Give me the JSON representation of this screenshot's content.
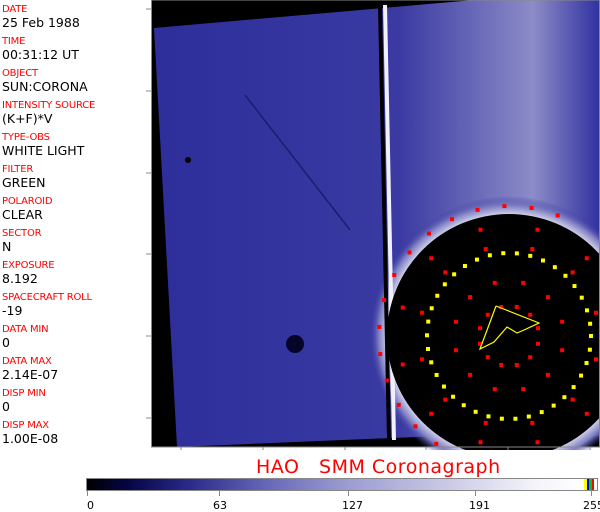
{
  "header_fields": [
    {
      "label": "DATE",
      "value": "25 Feb 1988"
    },
    {
      "label": "TIME",
      "value": "00:31:12 UT"
    },
    {
      "label": "OBJECT",
      "value": "SUN:CORONA"
    },
    {
      "label": "INTENSITY SOURCE",
      "value": "(K+F)*V"
    },
    {
      "label": "TYPE-OBS",
      "value": "WHITE LIGHT"
    },
    {
      "label": "FILTER",
      "value": "GREEN"
    },
    {
      "label": "POLAROID",
      "value": "CLEAR"
    },
    {
      "label": "SECTOR",
      "value": "N"
    },
    {
      "label": "EXPOSURE",
      "value": "8.192"
    },
    {
      "label": "SPACECRAFT ROLL",
      "value": "-19"
    },
    {
      "label": "DATA MIN",
      "value": "0"
    },
    {
      "label": "DATA MAX",
      "value": "2.14E-07"
    },
    {
      "label": "DISP MIN",
      "value": "0"
    },
    {
      "label": "DISP MAX",
      "value": "1.00E-08"
    }
  ],
  "title": "HAO   SMM Coronagraph",
  "colorbar": {
    "ticks": [
      "0",
      "63",
      "127",
      "191",
      "255"
    ],
    "min_color": "#000000",
    "max_color": "#ffffff",
    "overflow_colors": [
      "#ffff00",
      "#0000ff",
      "#00c000",
      "#ff0000"
    ]
  },
  "colors": {
    "label": "#ff0000",
    "image_blue": "#2e2e9c",
    "marker_red": "#ff0000",
    "marker_yellow": "#ffff00"
  }
}
